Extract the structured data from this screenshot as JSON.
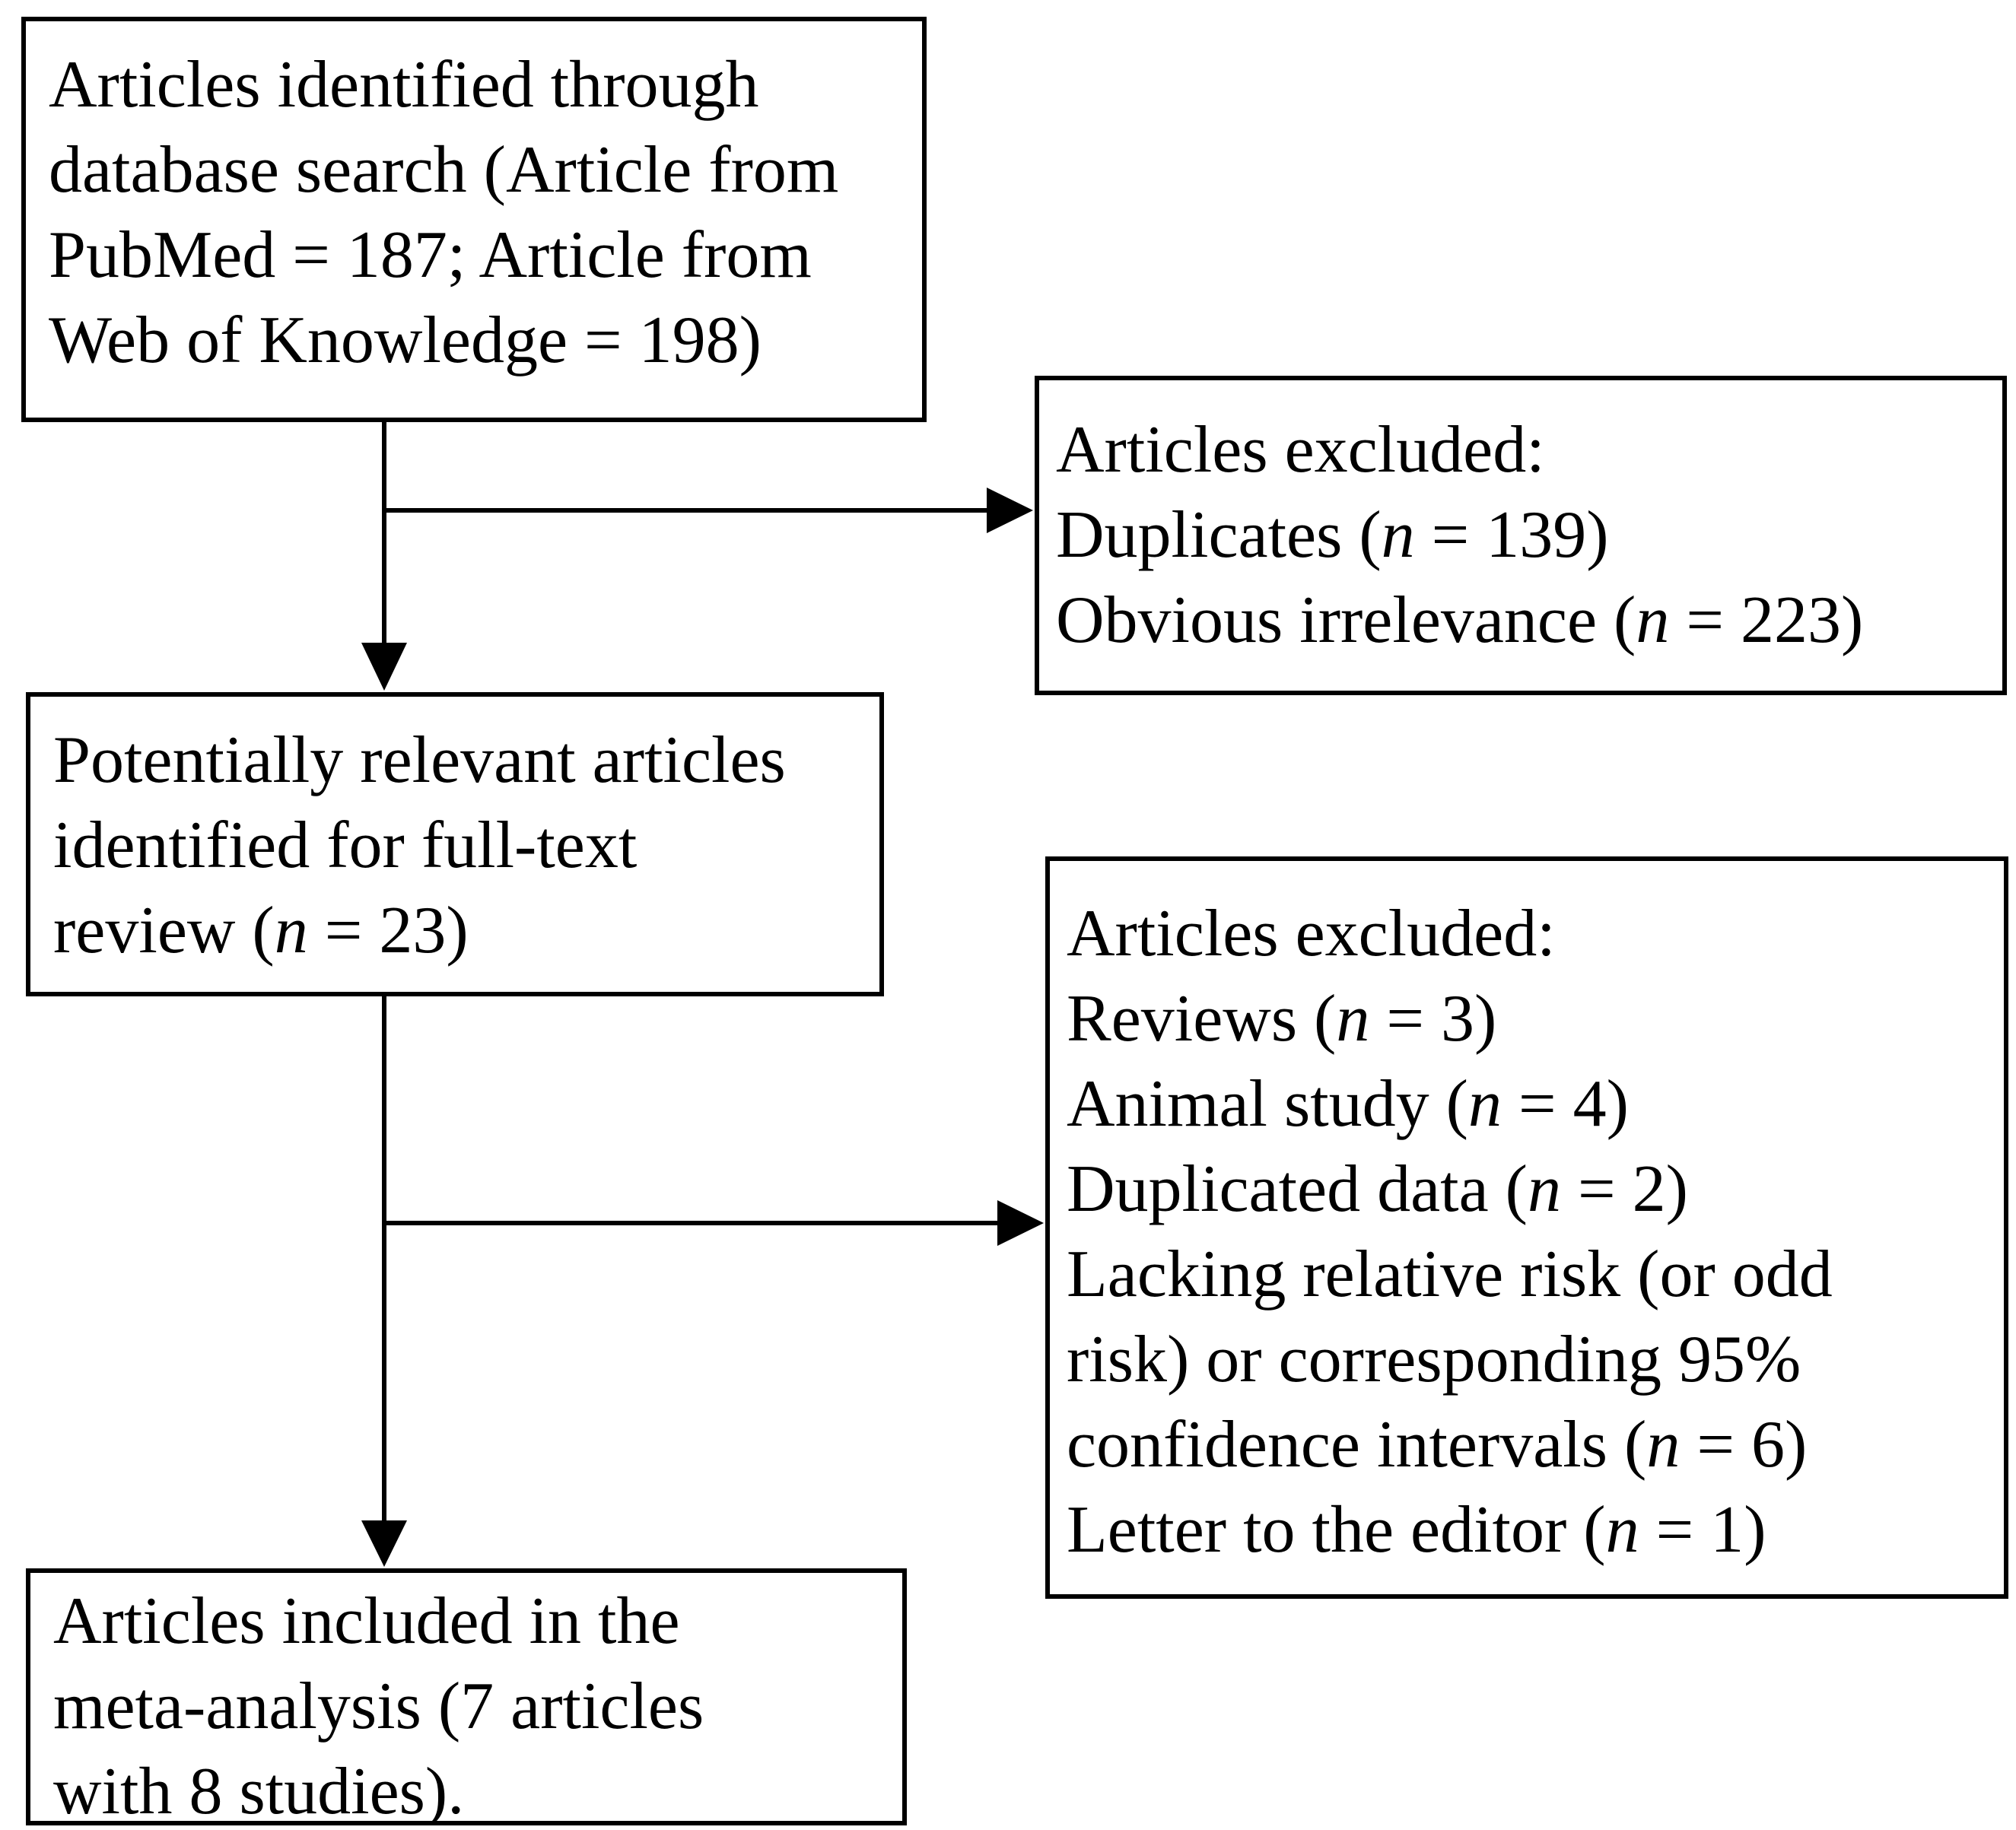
{
  "figure": {
    "title": "Article selection flow diagram",
    "background_color": "#ffffff",
    "line_color": "#000000",
    "text_color": "#000000",
    "boxes": [
      {
        "name": "articles-identified",
        "lines": [
          "Articles identified through",
          "database search (Article from",
          "PubMed = 187; Article from",
          "Web of Knowledge = 198)"
        ]
      },
      {
        "name": "articles-excluded-initial",
        "lines": [
          "Articles excluded:",
          "Duplicates (n = 139)",
          "Obvious irrelevance (n = 223)"
        ]
      },
      {
        "name": "articles-fulltext-review",
        "lines": [
          "Potentially relevant articles",
          "identified for full-text",
          "review (n = 23)"
        ]
      },
      {
        "name": "articles-excluded-fulltext",
        "lines": [
          "Articles excluded:",
          "Reviews (n = 3)",
          "Animal study (n = 4)",
          "Duplicated data (n = 2)",
          "Lacking relative risk (or odd",
          "risk) or corresponding 95%",
          "confidence intervals (n = 6)",
          "Letter to the editor (n = 1)"
        ]
      },
      {
        "name": "articles-included",
        "lines": [
          "Articles included in the",
          "meta-analysis (7 articles",
          "with 8 studies)."
        ]
      }
    ],
    "connectors": [
      {
        "name": "arrow-identified-to-fulltext",
        "type": "down-arrow"
      },
      {
        "name": "arrow-branch-to-excluded-initial",
        "type": "right-arrow"
      },
      {
        "name": "arrow-fulltext-to-included",
        "type": "down-arrow"
      },
      {
        "name": "arrow-branch-to-excluded-fulltext",
        "type": "right-arrow"
      }
    ]
  }
}
